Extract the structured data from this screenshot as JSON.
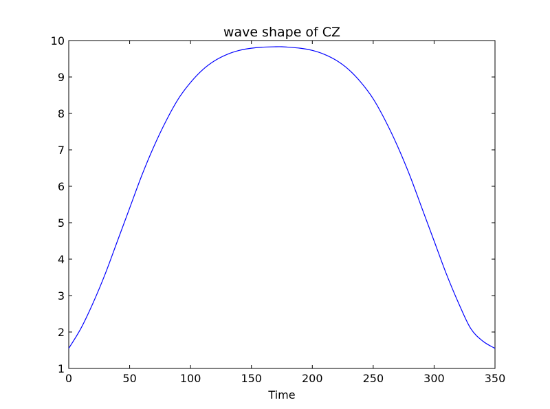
{
  "chart_data": {
    "type": "line",
    "title": "wave shape of CZ",
    "xlabel": "Time",
    "ylabel": "",
    "xlim": [
      0,
      350
    ],
    "ylim": [
      1,
      10
    ],
    "xticks": [
      0,
      50,
      100,
      150,
      200,
      250,
      300,
      350
    ],
    "yticks": [
      1,
      2,
      3,
      4,
      5,
      6,
      7,
      8,
      9,
      10
    ],
    "grid": false,
    "legend": "none",
    "series": [
      {
        "color": "#0000ff",
        "x": [
          0,
          10,
          20,
          30,
          40,
          50,
          60,
          70,
          80,
          90,
          100,
          110,
          120,
          130,
          140,
          150,
          160,
          170,
          175,
          180,
          190,
          200,
          210,
          220,
          230,
          240,
          250,
          260,
          270,
          280,
          290,
          300,
          310,
          320,
          330,
          340,
          350
        ],
        "y": [
          1.55,
          2.1,
          2.8,
          3.6,
          4.5,
          5.4,
          6.3,
          7.1,
          7.8,
          8.4,
          8.85,
          9.2,
          9.45,
          9.62,
          9.73,
          9.79,
          9.82,
          9.83,
          9.83,
          9.82,
          9.79,
          9.73,
          9.62,
          9.45,
          9.2,
          8.85,
          8.4,
          7.8,
          7.1,
          6.3,
          5.4,
          4.5,
          3.6,
          2.8,
          2.1,
          1.75,
          1.55
        ]
      }
    ]
  }
}
